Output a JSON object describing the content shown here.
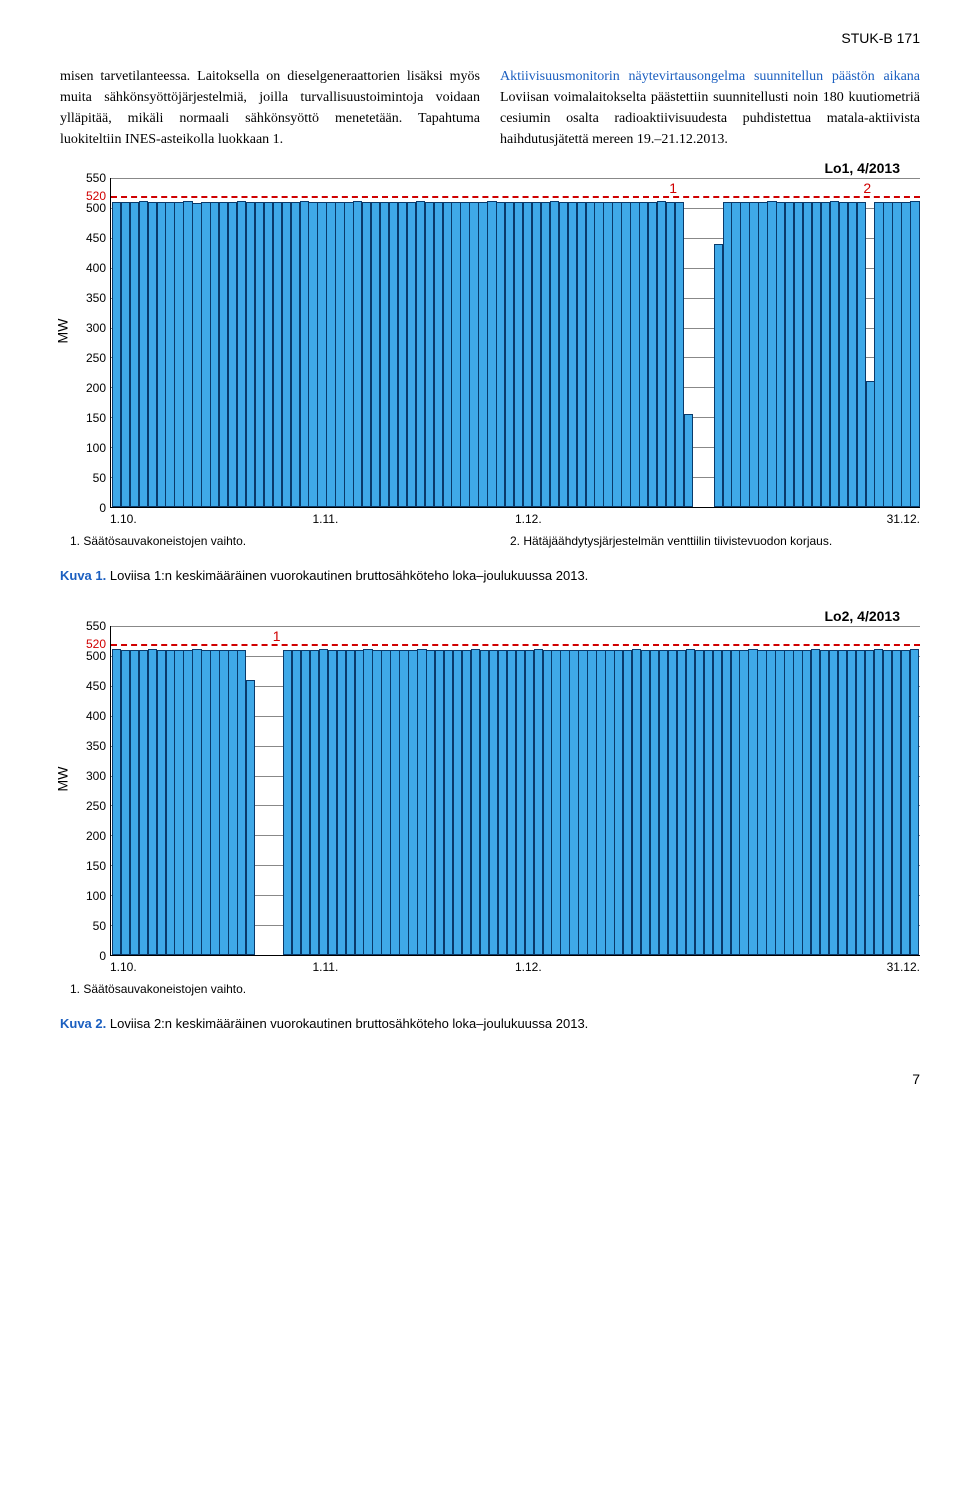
{
  "header_id": "STUK-B 171",
  "col_left": "misen tarvetilanteessa. Laitoksella on dieselgeneraattorien lisäksi myös muita sähkönsyöttöjärjestelmiä, joilla turvallisuustoimintoja voidaan ylläpitää, mikäli normaali sähkönsyöttö menetetään. Tapahtuma luokiteltiin INES-asteikolla luokkaan 1.",
  "col_right_head": "Aktiivisuusmonitorin näytevirtausongelma suunnitellun päästön aikana",
  "col_right_body": "Loviisan voimalaitokselta päästettiin suunnitellusti noin 180 kuutiometriä cesiumin osalta radioaktiivisuudesta puhdistettua matala-aktiivista haihdutusjätettä mereen 19.–21.12.2013.",
  "chart1": {
    "title": "Lo1, 4/2013",
    "ylabel": "MW",
    "yticks": [
      0,
      50,
      100,
      150,
      200,
      250,
      300,
      350,
      400,
      450,
      500,
      550
    ],
    "ymax": 550,
    "threshold_val": 520,
    "threshold_label": "520",
    "bar_color": "#3fa9e8",
    "bar_border": "#0a3a6a",
    "grid_color": "#888888",
    "threshold_color": "#d00000",
    "values": [
      510,
      510,
      510,
      512,
      510,
      510,
      510,
      510,
      512,
      508,
      510,
      510,
      510,
      510,
      512,
      510,
      510,
      510,
      510,
      510,
      510,
      512,
      510,
      510,
      510,
      510,
      510,
      512,
      510,
      510,
      510,
      510,
      510,
      510,
      512,
      510,
      510,
      510,
      510,
      510,
      510,
      510,
      512,
      510,
      510,
      510,
      510,
      510,
      510,
      512,
      510,
      510,
      510,
      510,
      510,
      510,
      510,
      510,
      510,
      510,
      510,
      512,
      510,
      510,
      155,
      0,
      0,
      0,
      440,
      510,
      510,
      510,
      510,
      510,
      512,
      510,
      510,
      510,
      510,
      510,
      510,
      512,
      510,
      510,
      510,
      210,
      510,
      510,
      510,
      510,
      512
    ],
    "annot1": {
      "label": "1",
      "pos_pct": 69
    },
    "annot2": {
      "label": "2",
      "pos_pct": 93
    },
    "xticks": [
      "1.10.",
      "1.11.",
      "1.12.",
      "31.12."
    ],
    "fn1": "1. Säätösauvakoneistojen vaihto.",
    "fn2": "2. Hätäjäähdytysjärjestelmän venttiilin tiivistevuodon korjaus."
  },
  "caption1_prefix": "Kuva 1.",
  "caption1_text": " Loviisa 1:n keskimääräinen vuorokautinen bruttosähköteho loka–joulukuussa 2013.",
  "chart2": {
    "title": "Lo2, 4/2013",
    "ylabel": "MW",
    "yticks": [
      0,
      50,
      100,
      150,
      200,
      250,
      300,
      350,
      400,
      450,
      500,
      550
    ],
    "ymax": 550,
    "threshold_val": 520,
    "threshold_label": "520",
    "values": [
      512,
      510,
      510,
      510,
      512,
      510,
      510,
      510,
      510,
      512,
      510,
      510,
      510,
      510,
      510,
      460,
      0,
      0,
      0,
      0,
      510,
      510,
      510,
      510,
      512,
      510,
      510,
      510,
      510,
      512,
      510,
      510,
      510,
      510,
      510,
      512,
      510,
      510,
      510,
      510,
      510,
      512,
      510,
      510,
      510,
      510,
      510,
      510,
      512,
      510,
      510,
      510,
      510,
      510,
      510,
      510,
      510,
      510,
      510,
      512,
      510,
      510,
      510,
      510,
      510,
      512,
      510,
      510,
      510,
      510,
      510,
      510,
      512,
      510,
      510,
      510,
      510,
      510,
      510,
      512,
      510,
      510,
      510,
      510,
      510,
      510,
      512,
      510,
      510,
      510,
      512
    ],
    "annot1": {
      "label": "1",
      "pos_pct": 20
    },
    "xticks": [
      "1.10.",
      "1.11.",
      "1.12.",
      "31.12."
    ],
    "fn1": "1. Säätösauvakoneistojen vaihto."
  },
  "caption2_prefix": "Kuva 2.",
  "caption2_text": " Loviisa 2:n keskimääräinen vuorokautinen bruttosähköteho loka–joulukuussa 2013.",
  "page_num": "7"
}
